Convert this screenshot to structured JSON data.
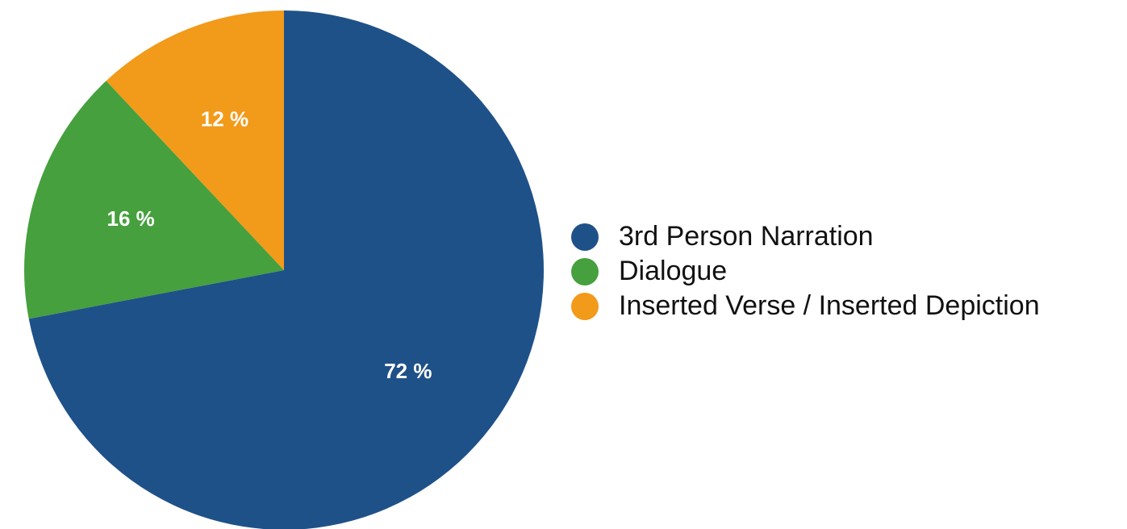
{
  "chart_data": {
    "type": "pie",
    "slices": [
      {
        "label": "3rd Person Narration",
        "value": 72,
        "value_label": "72 %",
        "color": "#1f5189"
      },
      {
        "label": "Dialogue",
        "value": 16,
        "value_label": "16 %",
        "color": "#45a03d"
      },
      {
        "label": "Inserted Verse / Inserted Depiction",
        "value": 12,
        "value_label": "12 %",
        "color": "#f29a1a"
      }
    ],
    "start": "12 o'clock",
    "direction": "clockwise",
    "legend_position": "right",
    "title": ""
  }
}
